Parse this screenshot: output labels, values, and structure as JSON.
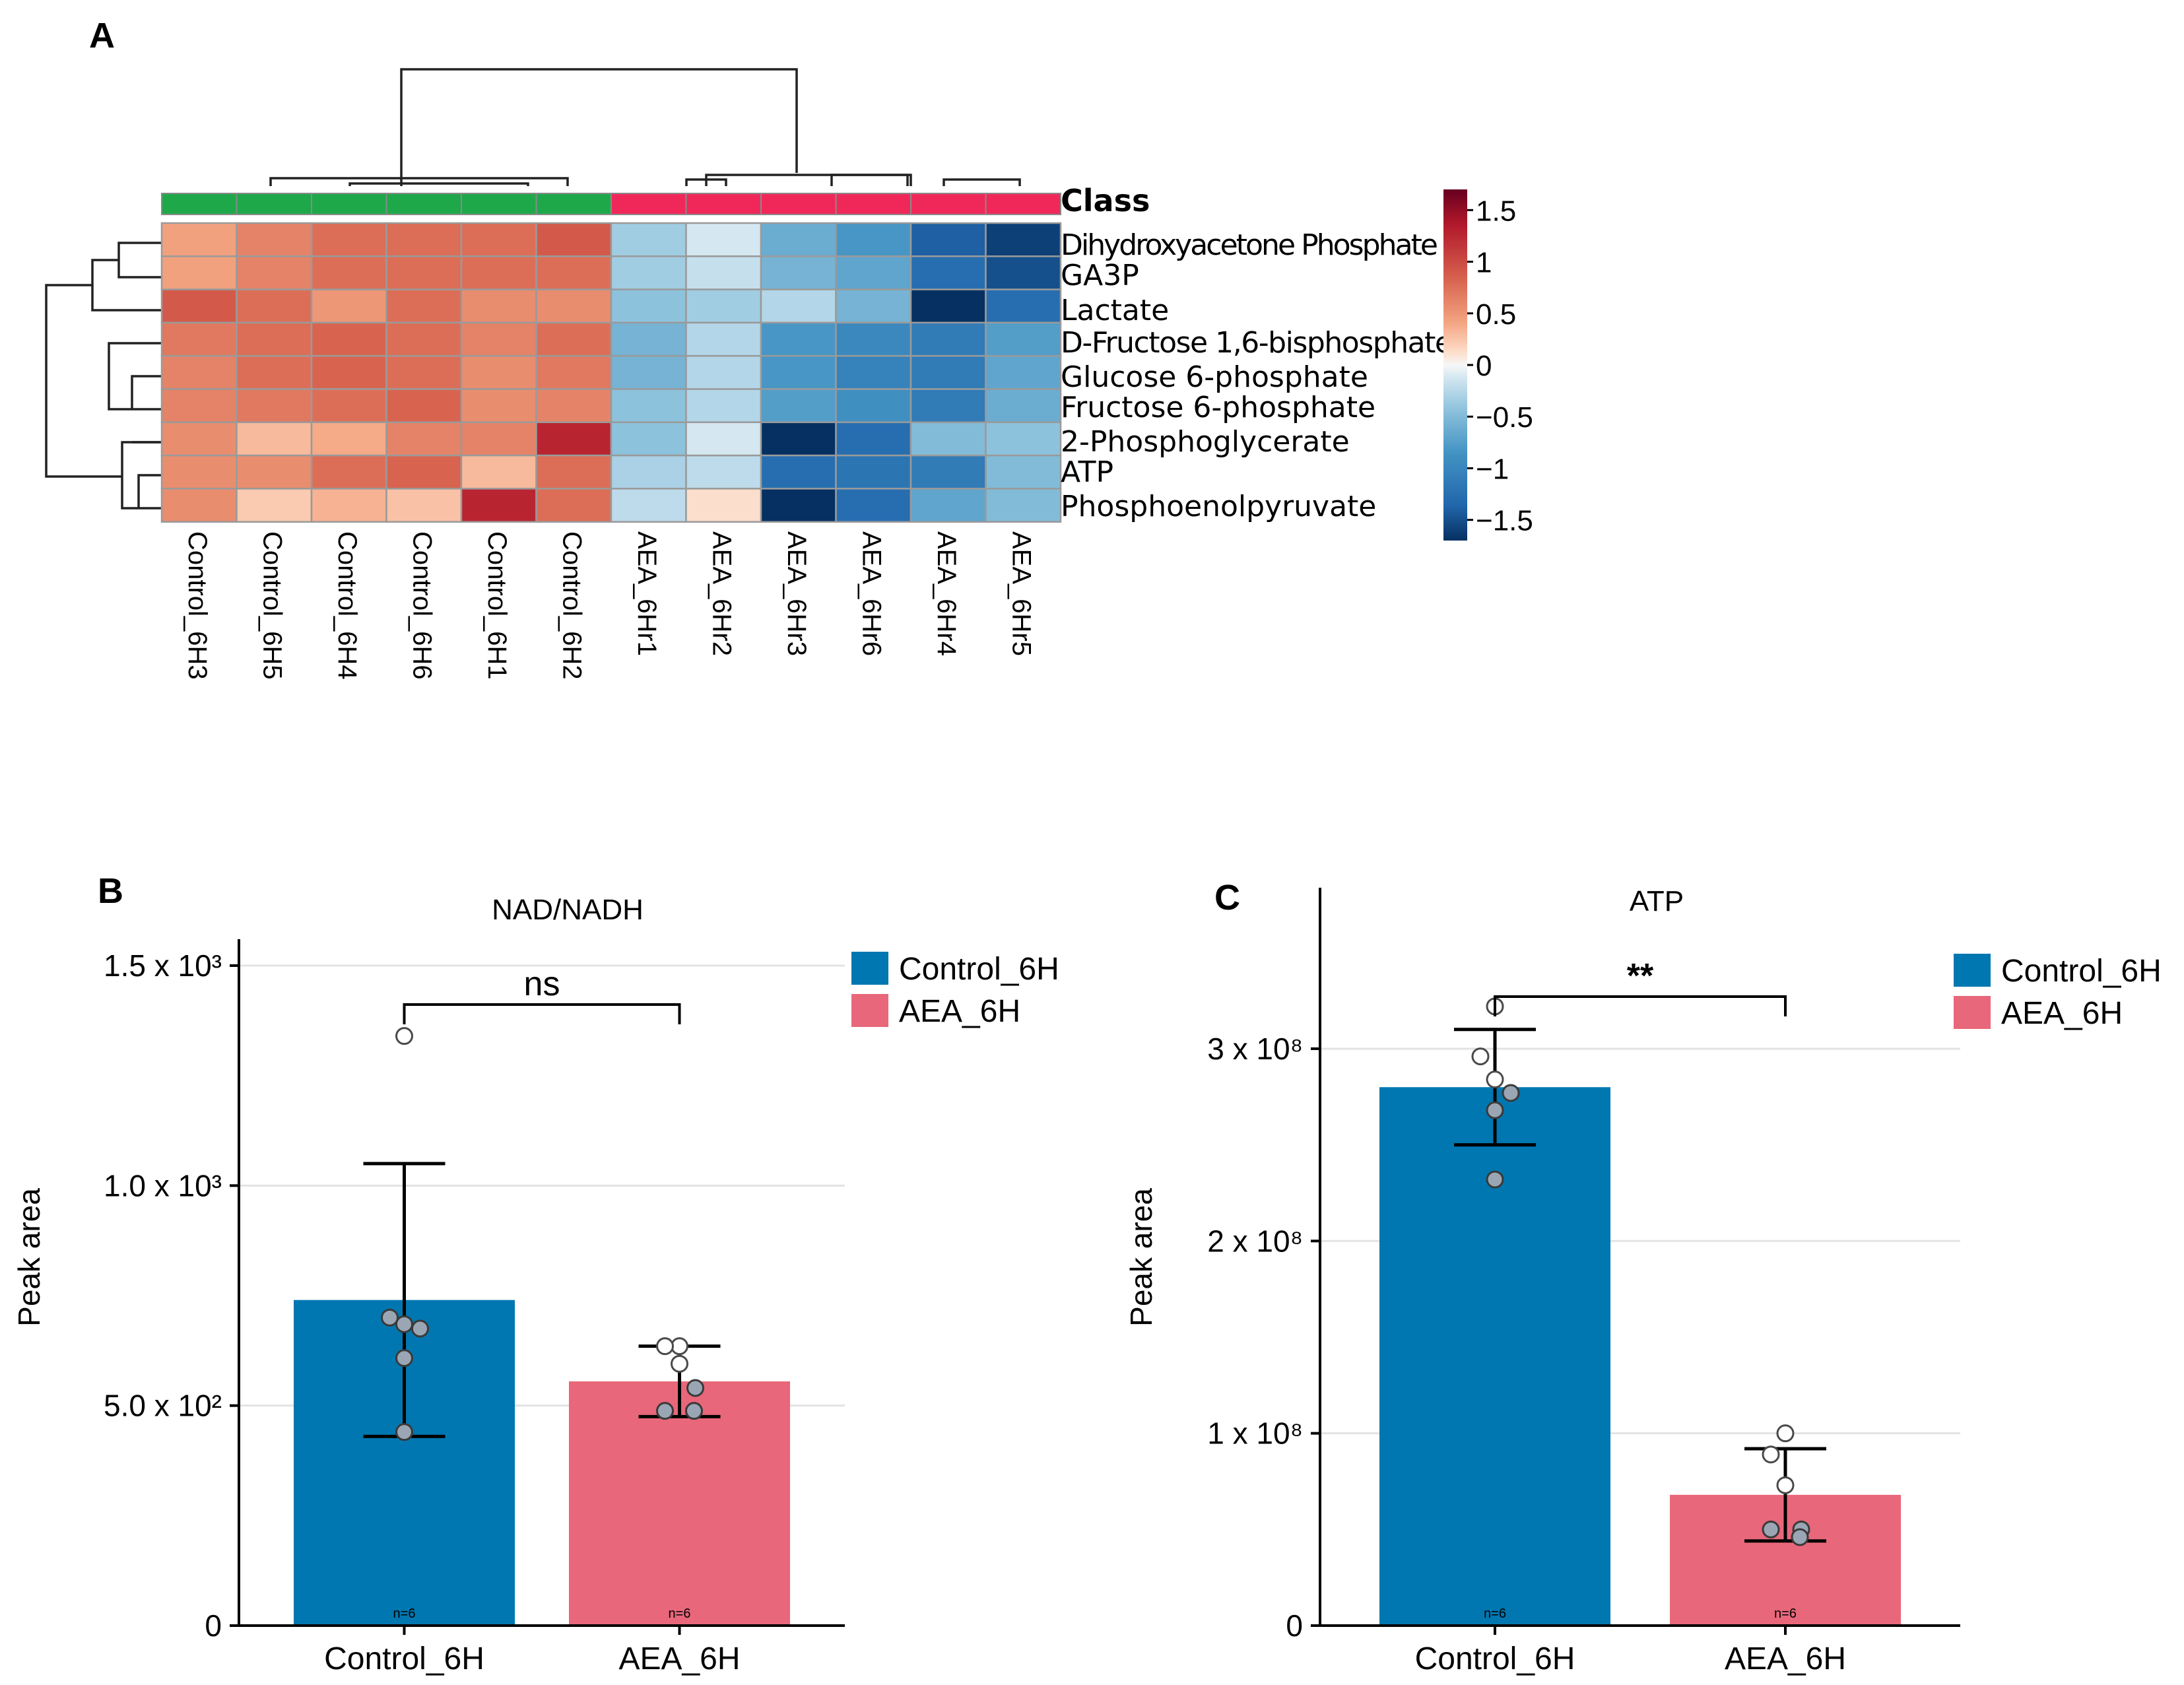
{
  "panels": {
    "a": "A",
    "b": "B",
    "c": "C"
  },
  "colors": {
    "control": "#0077b0",
    "aea": "#e8677a",
    "class_control": "#1fa84a",
    "class_aea": "#f0285a",
    "scale": [
      "#053061",
      "#2166ac",
      "#4393c3",
      "#92c5de",
      "#d1e5f0",
      "#f7f7f7",
      "#fddbc7",
      "#f4a582",
      "#d6604d",
      "#b2182b",
      "#67001f"
    ]
  },
  "chart_data": [
    {
      "type": "heatmap",
      "title": "",
      "class_label": "Class",
      "columns": [
        "Control_6H3",
        "Control_6H5",
        "Control_6H4",
        "Control_6H6",
        "Control_6H1",
        "Control_6H2",
        "AEA_6Hr1",
        "AEA_6Hr2",
        "AEA_6Hr3",
        "AEA_6Hr6",
        "AEA_6Hr4",
        "AEA_6Hr5"
      ],
      "column_class": [
        "Control",
        "Control",
        "Control",
        "Control",
        "Control",
        "Control",
        "AEA",
        "AEA",
        "AEA",
        "AEA",
        "AEA",
        "AEA"
      ],
      "rows": [
        "Dihydroxyacetone Phosphate",
        "GA3P",
        "Lactate",
        "D-Fructose 1,6-bisphosphate",
        "Glucose 6-phosphate",
        "Fructose 6-phosphate",
        "2-Phosphoglycerate",
        "ATP",
        "Phosphoenolpyruvate"
      ],
      "values": [
        [
          0.7,
          0.85,
          0.95,
          0.95,
          0.95,
          1.05,
          -0.6,
          -0.3,
          -0.85,
          -1.0,
          -1.4,
          -1.6
        ],
        [
          0.7,
          0.85,
          0.95,
          0.95,
          0.95,
          0.95,
          -0.6,
          -0.4,
          -0.8,
          -0.9,
          -1.3,
          -1.5
        ],
        [
          1.05,
          0.95,
          0.75,
          0.95,
          0.8,
          0.8,
          -0.7,
          -0.6,
          -0.5,
          -0.8,
          -1.7,
          -1.3
        ],
        [
          0.9,
          0.95,
          1.0,
          0.95,
          0.85,
          0.95,
          -0.8,
          -0.5,
          -1.0,
          -1.1,
          -1.2,
          -0.95
        ],
        [
          0.85,
          0.95,
          1.0,
          0.95,
          0.8,
          0.9,
          -0.8,
          -0.5,
          -1.0,
          -1.15,
          -1.2,
          -0.9
        ],
        [
          0.85,
          0.9,
          0.95,
          1.0,
          0.8,
          0.85,
          -0.7,
          -0.5,
          -0.95,
          -1.05,
          -1.2,
          -0.85
        ],
        [
          0.8,
          0.55,
          0.65,
          0.85,
          0.85,
          1.3,
          -0.7,
          -0.3,
          -1.7,
          -1.3,
          -0.75,
          -0.7
        ],
        [
          0.8,
          0.8,
          0.95,
          1.0,
          0.55,
          0.95,
          -0.55,
          -0.45,
          -1.3,
          -1.25,
          -1.2,
          -0.75
        ],
        [
          0.8,
          0.45,
          0.6,
          0.5,
          1.3,
          0.95,
          -0.45,
          0.3,
          -1.8,
          -1.3,
          -0.9,
          -0.75
        ]
      ],
      "color_scale": {
        "min": -1.7,
        "max": 1.7,
        "ticks": [
          "1.5",
          "1",
          "0.5",
          "0",
          "−0.5",
          "−1",
          "−1.5"
        ],
        "tick_values": [
          1.5,
          1,
          0.5,
          0,
          -0.5,
          -1,
          -1.5
        ]
      }
    },
    {
      "type": "bar",
      "title": "NAD/NADH",
      "categories": [
        "Control_6H",
        "AEA_6H"
      ],
      "values": [
        740,
        555
      ],
      "errors": [
        310,
        80
      ],
      "n_labels": [
        "n=6",
        "n=6"
      ],
      "points": [
        [
          1340,
          700,
          685,
          675,
          608,
          440
        ],
        [
          635,
          635,
          595,
          540,
          488,
          488
        ]
      ],
      "ylabel": "Peak area",
      "ylim": [
        0,
        1500
      ],
      "yticks": [
        {
          "value": 0,
          "label": "0"
        },
        {
          "value": 500,
          "label": "5.0 x 10²"
        },
        {
          "value": 1000,
          "label": "1.0 x 10³"
        },
        {
          "value": 1500,
          "label": "1.5 x 10³"
        }
      ],
      "significance": "ns",
      "legend": [
        "Control_6H",
        "AEA_6H"
      ]
    },
    {
      "type": "bar",
      "title": "ATP",
      "categories": [
        "Control_6H",
        "AEA_6H"
      ],
      "values": [
        2.8,
        0.68
      ],
      "errors": [
        0.3,
        0.24
      ],
      "n_labels": [
        "n=6",
        "n=6"
      ],
      "points": [
        [
          3.22,
          2.96,
          2.84,
          2.77,
          2.68,
          2.32
        ],
        [
          1.0,
          0.89,
          0.73,
          0.5,
          0.5,
          0.46
        ]
      ],
      "ylabel": "Peak area",
      "y_unit": "x 10^8",
      "ylim": [
        0,
        3.7
      ],
      "yticks": [
        {
          "value": 0,
          "label": "0"
        },
        {
          "value": 1,
          "label": "1 x 10⁸"
        },
        {
          "value": 2,
          "label": "2 x 10⁸"
        },
        {
          "value": 3,
          "label": "3 x 10⁸"
        }
      ],
      "significance": "**",
      "legend": [
        "Control_6H",
        "AEA_6H"
      ]
    }
  ]
}
